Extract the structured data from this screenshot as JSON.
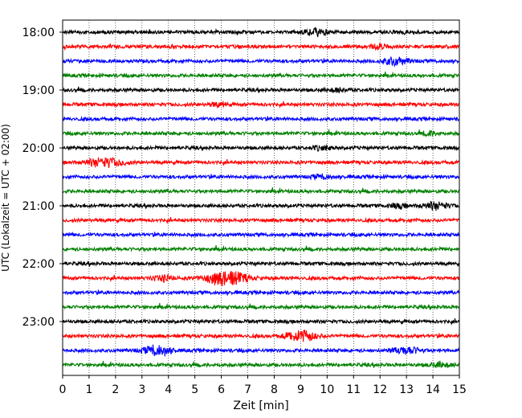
{
  "chart_data": {
    "type": "line",
    "title": "",
    "xlabel": "Zeit  [min]",
    "ylabel": "UTC (Lokalzeit = UTC + 02:00)",
    "xlim": [
      0,
      15
    ],
    "x_ticks": [
      "0",
      "1",
      "2",
      "3",
      "4",
      "5",
      "6",
      "7",
      "8",
      "9",
      "10",
      "11",
      "12",
      "13",
      "14",
      "15"
    ],
    "y_ticks": [
      "18:00",
      "19:00",
      "20:00",
      "21:00",
      "22:00",
      "23:00"
    ],
    "grid": "vertical dotted",
    "trace_interval_min": 15,
    "colors": [
      "#000000",
      "#ff0000",
      "#0000ff",
      "#008000"
    ],
    "series": [
      {
        "start": "18:00",
        "color": "#000000",
        "events": [
          [
            9.6,
            0.5
          ]
        ]
      },
      {
        "start": "18:15",
        "color": "#ff0000",
        "events": [
          [
            12.0,
            0.3
          ]
        ]
      },
      {
        "start": "18:30",
        "color": "#0000ff",
        "events": [
          [
            12.6,
            0.6
          ]
        ]
      },
      {
        "start": "18:45",
        "color": "#008000",
        "events": []
      },
      {
        "start": "19:00",
        "color": "#000000",
        "events": [
          [
            10.4,
            0.3
          ]
        ]
      },
      {
        "start": "19:15",
        "color": "#ff0000",
        "events": [
          [
            5.9,
            0.3
          ]
        ]
      },
      {
        "start": "19:30",
        "color": "#0000ff",
        "events": []
      },
      {
        "start": "19:45",
        "color": "#008000",
        "events": [
          [
            13.9,
            0.3
          ]
        ]
      },
      {
        "start": "20:00",
        "color": "#000000",
        "events": [
          [
            9.8,
            0.3
          ]
        ]
      },
      {
        "start": "20:15",
        "color": "#ff0000",
        "events": [
          [
            1.4,
            0.7
          ],
          [
            2.1,
            0.4
          ]
        ]
      },
      {
        "start": "20:30",
        "color": "#0000ff",
        "events": [
          [
            9.8,
            0.3
          ]
        ]
      },
      {
        "start": "20:45",
        "color": "#008000",
        "events": []
      },
      {
        "start": "21:00",
        "color": "#000000",
        "events": [
          [
            14.1,
            0.6
          ],
          [
            12.7,
            0.3
          ]
        ]
      },
      {
        "start": "21:15",
        "color": "#ff0000",
        "events": []
      },
      {
        "start": "21:30",
        "color": "#0000ff",
        "events": []
      },
      {
        "start": "21:45",
        "color": "#008000",
        "events": []
      },
      {
        "start": "22:00",
        "color": "#000000",
        "events": []
      },
      {
        "start": "22:15",
        "color": "#ff0000",
        "events": [
          [
            3.8,
            0.4
          ],
          [
            6.2,
            1.3
          ]
        ]
      },
      {
        "start": "22:30",
        "color": "#0000ff",
        "events": []
      },
      {
        "start": "22:45",
        "color": "#008000",
        "events": []
      },
      {
        "start": "23:00",
        "color": "#000000",
        "events": []
      },
      {
        "start": "23:15",
        "color": "#ff0000",
        "events": [
          [
            9.0,
            0.9
          ]
        ]
      },
      {
        "start": "23:30",
        "color": "#0000ff",
        "events": [
          [
            3.6,
            0.8
          ],
          [
            13.0,
            0.6
          ]
        ]
      },
      {
        "start": "23:45",
        "color": "#008000",
        "events": [
          [
            14.3,
            0.4
          ]
        ]
      }
    ]
  }
}
